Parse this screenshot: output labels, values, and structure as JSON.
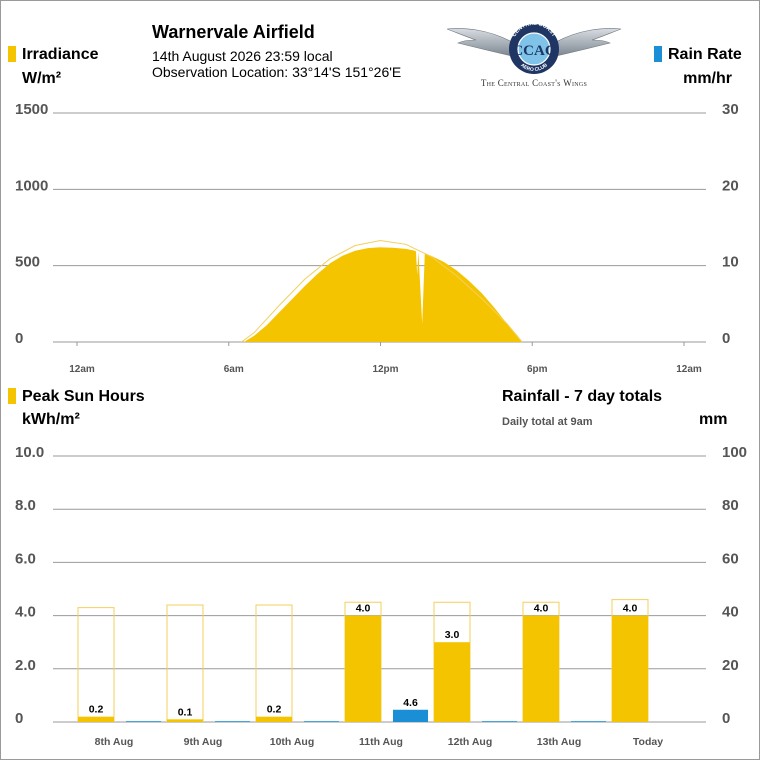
{
  "colors": {
    "sun": "#f5c400",
    "sun_outline": "#f3cf5c",
    "rain": "#1a8fd6",
    "grid": "#9a9a9a",
    "tick_text": "#555555"
  },
  "header": {
    "site_name": "Warnervale Airfield",
    "date_time": "14th August 2026  23:59 local",
    "location": "Observation Location: 33°14'S 151°26'E",
    "logo_ring_text_top": "CENTRAL COAST",
    "logo_ring_text_bottom": "AERO CLUB",
    "logo_letters": "CCAC",
    "logo_tagline": "The Central Coast's Wings"
  },
  "top_chart": {
    "left_title": "Irradiance",
    "left_unit": "W/m²",
    "right_title": "Rain Rate",
    "right_unit": "mm/hr"
  },
  "bottom_chart": {
    "left_title": "Peak Sun Hours",
    "left_unit": "kWh/m²",
    "right_title": "Rainfall - 7 day totals",
    "right_subtitle": "Daily total at 9am",
    "right_unit": "mm"
  },
  "chart_data": [
    {
      "type": "area",
      "x_ticks": [
        "12am",
        "6am",
        "12pm",
        "6pm",
        "12am"
      ],
      "x_range_hours": [
        0,
        24
      ],
      "y_left": {
        "ticks": [
          "1500",
          "1000",
          "500",
          "0"
        ],
        "range": [
          0,
          1500
        ]
      },
      "y_right": {
        "ticks": [
          "30",
          "20",
          "10",
          "0"
        ],
        "range": [
          0,
          30
        ]
      },
      "grid": true,
      "series": [
        {
          "values_hour_wm2": [
            [
              6.6,
              0
            ],
            [
              7.0,
              40
            ],
            [
              7.5,
              110
            ],
            [
              8.0,
              195
            ],
            [
              8.5,
              280
            ],
            [
              9.0,
              365
            ],
            [
              9.5,
              445
            ],
            [
              10.0,
              515
            ],
            [
              10.5,
              565
            ],
            [
              11.0,
              598
            ],
            [
              11.5,
              615
            ],
            [
              12.0,
              620
            ],
            [
              12.5,
              618
            ],
            [
              13.0,
              610
            ],
            [
              13.3,
              600
            ],
            [
              13.4,
              595
            ],
            [
              13.45,
              440
            ],
            [
              13.5,
              590
            ],
            [
              13.65,
              120
            ],
            [
              13.75,
              580
            ],
            [
              14.0,
              565
            ],
            [
              14.5,
              525
            ],
            [
              15.0,
              470
            ],
            [
              15.5,
              400
            ],
            [
              16.0,
              320
            ],
            [
              16.5,
              225
            ],
            [
              17.0,
              120
            ],
            [
              17.4,
              45
            ],
            [
              17.6,
              0
            ]
          ],
          "clear_sky_hour_wm2": [
            [
              6.5,
              0
            ],
            [
              7.0,
              60
            ],
            [
              8.0,
              240
            ],
            [
              9.0,
              410
            ],
            [
              10.0,
              545
            ],
            [
              11.0,
              632
            ],
            [
              12.0,
              665
            ],
            [
              13.0,
              640
            ],
            [
              14.0,
              560
            ],
            [
              15.0,
              435
            ],
            [
              16.0,
              285
            ],
            [
              17.0,
              120
            ],
            [
              17.6,
              0
            ]
          ]
        }
      ],
      "rain_rate": []
    },
    {
      "type": "bar",
      "categories": [
        "8th Aug",
        "9th Aug",
        "10th Aug",
        "11th Aug",
        "12th Aug",
        "13th Aug",
        "Today"
      ],
      "y_left": {
        "ticks": [
          "10.0",
          "8.0",
          "6.0",
          "4.0",
          "2.0",
          "0"
        ],
        "range": [
          0,
          10
        ]
      },
      "y_right": {
        "ticks": [
          "100",
          "80",
          "60",
          "40",
          "20",
          "0"
        ],
        "range": [
          0,
          100
        ]
      },
      "grid": true,
      "series": [
        {
          "axis": "left",
          "values": [
            0.2,
            0.1,
            0.2,
            4.0,
            3.0,
            4.0,
            4.0
          ],
          "labels": [
            "0.2",
            "0.1",
            "0.2",
            "4.0",
            "3.0",
            "4.0",
            "4.0"
          ],
          "clear_sky_values": [
            4.3,
            4.4,
            4.4,
            4.5,
            4.5,
            4.5,
            4.6
          ]
        },
        {
          "axis": "right",
          "values": [
            0,
            0,
            0,
            4.6,
            0,
            0,
            0
          ],
          "labels": [
            "",
            "",
            "",
            "4.6",
            "",
            "",
            ""
          ]
        }
      ]
    }
  ]
}
